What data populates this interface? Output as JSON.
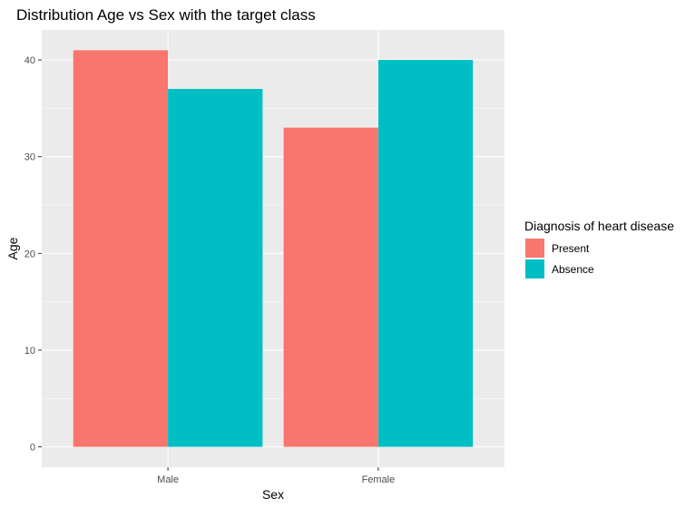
{
  "chart_data": {
    "type": "bar",
    "title": "Distribution Age vs Sex with the target class",
    "xlabel": "Sex",
    "ylabel": "Age",
    "categories": [
      "Male",
      "Female"
    ],
    "series": [
      {
        "name": "Present",
        "values": [
          41,
          33
        ],
        "color": "#F8766D"
      },
      {
        "name": "Absence",
        "values": [
          37,
          40
        ],
        "color": "#00BFC4"
      }
    ],
    "ylim": [
      -2.1,
      43.1
    ],
    "yticks": [
      0,
      10,
      20,
      30,
      40
    ],
    "grid": true,
    "legend": {
      "title": "Diagnosis of heart disease",
      "placement": "right"
    },
    "panel_color": "#EBEBEB"
  }
}
